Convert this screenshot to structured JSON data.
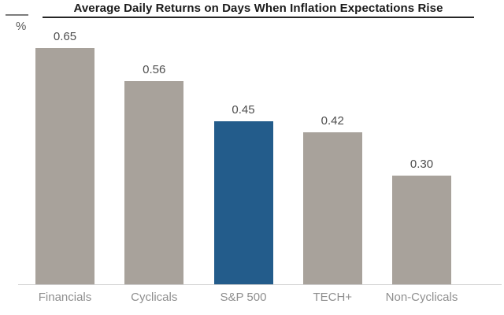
{
  "title": "Average Daily Returns on Days When Inflation Expectations Rise",
  "y_axis_unit": "%",
  "colors": {
    "default_bar": "#a8a29b",
    "highlight_bar": "#235c8b",
    "title_text": "#1a1a1a",
    "value_label_text": "#4d4d4d",
    "category_label_text": "#8f8f8f",
    "baseline": "#d0d0d0"
  },
  "chart_data": {
    "type": "bar",
    "title": "Average Daily Returns on Days When Inflation Expectations Rise",
    "ylabel": "%",
    "categories": [
      "Financials",
      "Cyclicals",
      "S&P 500",
      "TECH+",
      "Non-Cyclicals"
    ],
    "values": [
      0.65,
      0.56,
      0.45,
      0.42,
      0.3
    ],
    "value_labels": [
      "0.65",
      "0.56",
      "0.45",
      "0.42",
      "0.30"
    ],
    "highlight_category": "S&P 500",
    "ylim": [
      0,
      0.7
    ],
    "grid": false,
    "legend": false,
    "value_labels_position": "above-bars"
  }
}
